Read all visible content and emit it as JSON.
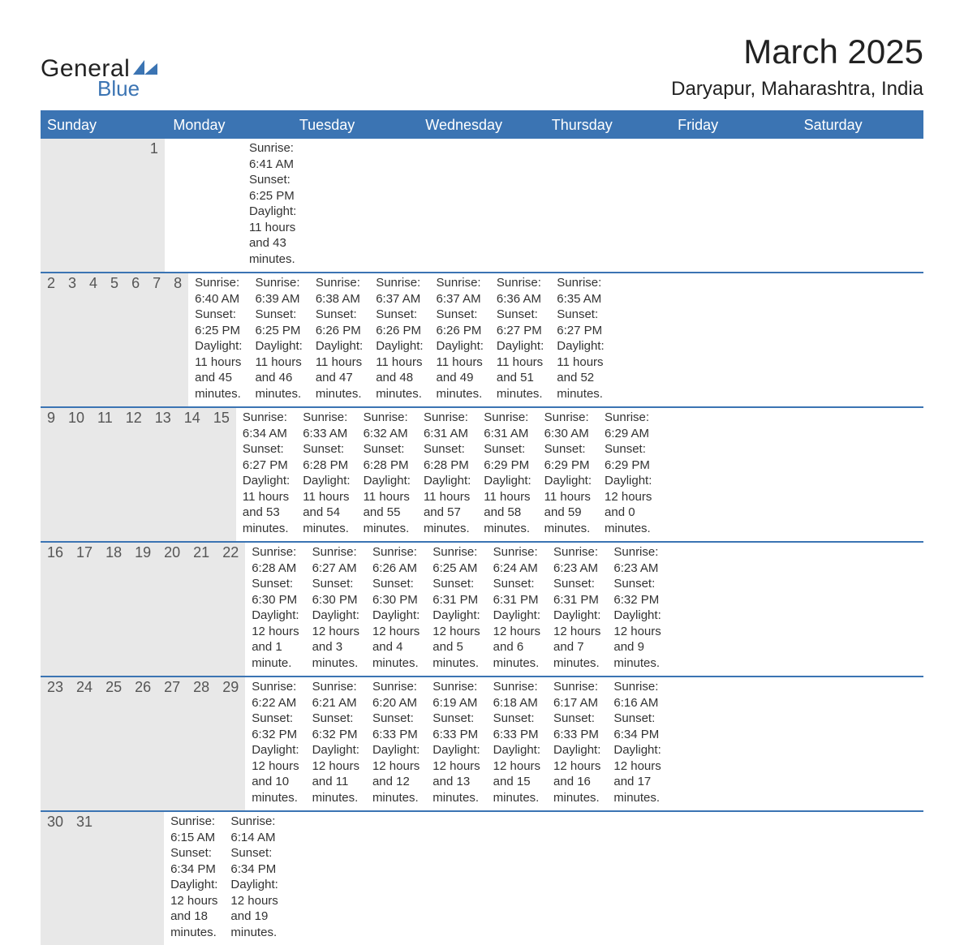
{
  "colors": {
    "header_blue": "#3b74b3",
    "row_separator_blue": "#3b74b3",
    "daynum_background": "#e8e8e8",
    "page_background": "#ffffff",
    "text": "#333333",
    "logo_dark": "#222222",
    "logo_blue": "#3b74b3"
  },
  "typography": {
    "font_family": "Arial",
    "title_month_fontsize": 42,
    "title_location_fontsize": 24,
    "weekday_fontsize": 18,
    "daynum_fontsize": 18,
    "body_fontsize": 15
  },
  "logo": {
    "line1": "General",
    "line2": "Blue"
  },
  "title": {
    "month": "March 2025",
    "location": "Daryapur, Maharashtra, India"
  },
  "weekdays": [
    "Sunday",
    "Monday",
    "Tuesday",
    "Wednesday",
    "Thursday",
    "Friday",
    "Saturday"
  ],
  "weeks": [
    [
      null,
      null,
      null,
      null,
      null,
      null,
      {
        "num": "1",
        "sunrise": "Sunrise: 6:41 AM",
        "sunset": "Sunset: 6:25 PM",
        "dl1": "Daylight: 11 hours",
        "dl2": "and 43 minutes."
      }
    ],
    [
      {
        "num": "2",
        "sunrise": "Sunrise: 6:40 AM",
        "sunset": "Sunset: 6:25 PM",
        "dl1": "Daylight: 11 hours",
        "dl2": "and 45 minutes."
      },
      {
        "num": "3",
        "sunrise": "Sunrise: 6:39 AM",
        "sunset": "Sunset: 6:25 PM",
        "dl1": "Daylight: 11 hours",
        "dl2": "and 46 minutes."
      },
      {
        "num": "4",
        "sunrise": "Sunrise: 6:38 AM",
        "sunset": "Sunset: 6:26 PM",
        "dl1": "Daylight: 11 hours",
        "dl2": "and 47 minutes."
      },
      {
        "num": "5",
        "sunrise": "Sunrise: 6:37 AM",
        "sunset": "Sunset: 6:26 PM",
        "dl1": "Daylight: 11 hours",
        "dl2": "and 48 minutes."
      },
      {
        "num": "6",
        "sunrise": "Sunrise: 6:37 AM",
        "sunset": "Sunset: 6:26 PM",
        "dl1": "Daylight: 11 hours",
        "dl2": "and 49 minutes."
      },
      {
        "num": "7",
        "sunrise": "Sunrise: 6:36 AM",
        "sunset": "Sunset: 6:27 PM",
        "dl1": "Daylight: 11 hours",
        "dl2": "and 51 minutes."
      },
      {
        "num": "8",
        "sunrise": "Sunrise: 6:35 AM",
        "sunset": "Sunset: 6:27 PM",
        "dl1": "Daylight: 11 hours",
        "dl2": "and 52 minutes."
      }
    ],
    [
      {
        "num": "9",
        "sunrise": "Sunrise: 6:34 AM",
        "sunset": "Sunset: 6:27 PM",
        "dl1": "Daylight: 11 hours",
        "dl2": "and 53 minutes."
      },
      {
        "num": "10",
        "sunrise": "Sunrise: 6:33 AM",
        "sunset": "Sunset: 6:28 PM",
        "dl1": "Daylight: 11 hours",
        "dl2": "and 54 minutes."
      },
      {
        "num": "11",
        "sunrise": "Sunrise: 6:32 AM",
        "sunset": "Sunset: 6:28 PM",
        "dl1": "Daylight: 11 hours",
        "dl2": "and 55 minutes."
      },
      {
        "num": "12",
        "sunrise": "Sunrise: 6:31 AM",
        "sunset": "Sunset: 6:28 PM",
        "dl1": "Daylight: 11 hours",
        "dl2": "and 57 minutes."
      },
      {
        "num": "13",
        "sunrise": "Sunrise: 6:31 AM",
        "sunset": "Sunset: 6:29 PM",
        "dl1": "Daylight: 11 hours",
        "dl2": "and 58 minutes."
      },
      {
        "num": "14",
        "sunrise": "Sunrise: 6:30 AM",
        "sunset": "Sunset: 6:29 PM",
        "dl1": "Daylight: 11 hours",
        "dl2": "and 59 minutes."
      },
      {
        "num": "15",
        "sunrise": "Sunrise: 6:29 AM",
        "sunset": "Sunset: 6:29 PM",
        "dl1": "Daylight: 12 hours",
        "dl2": "and 0 minutes."
      }
    ],
    [
      {
        "num": "16",
        "sunrise": "Sunrise: 6:28 AM",
        "sunset": "Sunset: 6:30 PM",
        "dl1": "Daylight: 12 hours",
        "dl2": "and 1 minute."
      },
      {
        "num": "17",
        "sunrise": "Sunrise: 6:27 AM",
        "sunset": "Sunset: 6:30 PM",
        "dl1": "Daylight: 12 hours",
        "dl2": "and 3 minutes."
      },
      {
        "num": "18",
        "sunrise": "Sunrise: 6:26 AM",
        "sunset": "Sunset: 6:30 PM",
        "dl1": "Daylight: 12 hours",
        "dl2": "and 4 minutes."
      },
      {
        "num": "19",
        "sunrise": "Sunrise: 6:25 AM",
        "sunset": "Sunset: 6:31 PM",
        "dl1": "Daylight: 12 hours",
        "dl2": "and 5 minutes."
      },
      {
        "num": "20",
        "sunrise": "Sunrise: 6:24 AM",
        "sunset": "Sunset: 6:31 PM",
        "dl1": "Daylight: 12 hours",
        "dl2": "and 6 minutes."
      },
      {
        "num": "21",
        "sunrise": "Sunrise: 6:23 AM",
        "sunset": "Sunset: 6:31 PM",
        "dl1": "Daylight: 12 hours",
        "dl2": "and 7 minutes."
      },
      {
        "num": "22",
        "sunrise": "Sunrise: 6:23 AM",
        "sunset": "Sunset: 6:32 PM",
        "dl1": "Daylight: 12 hours",
        "dl2": "and 9 minutes."
      }
    ],
    [
      {
        "num": "23",
        "sunrise": "Sunrise: 6:22 AM",
        "sunset": "Sunset: 6:32 PM",
        "dl1": "Daylight: 12 hours",
        "dl2": "and 10 minutes."
      },
      {
        "num": "24",
        "sunrise": "Sunrise: 6:21 AM",
        "sunset": "Sunset: 6:32 PM",
        "dl1": "Daylight: 12 hours",
        "dl2": "and 11 minutes."
      },
      {
        "num": "25",
        "sunrise": "Sunrise: 6:20 AM",
        "sunset": "Sunset: 6:33 PM",
        "dl1": "Daylight: 12 hours",
        "dl2": "and 12 minutes."
      },
      {
        "num": "26",
        "sunrise": "Sunrise: 6:19 AM",
        "sunset": "Sunset: 6:33 PM",
        "dl1": "Daylight: 12 hours",
        "dl2": "and 13 minutes."
      },
      {
        "num": "27",
        "sunrise": "Sunrise: 6:18 AM",
        "sunset": "Sunset: 6:33 PM",
        "dl1": "Daylight: 12 hours",
        "dl2": "and 15 minutes."
      },
      {
        "num": "28",
        "sunrise": "Sunrise: 6:17 AM",
        "sunset": "Sunset: 6:33 PM",
        "dl1": "Daylight: 12 hours",
        "dl2": "and 16 minutes."
      },
      {
        "num": "29",
        "sunrise": "Sunrise: 6:16 AM",
        "sunset": "Sunset: 6:34 PM",
        "dl1": "Daylight: 12 hours",
        "dl2": "and 17 minutes."
      }
    ],
    [
      {
        "num": "30",
        "sunrise": "Sunrise: 6:15 AM",
        "sunset": "Sunset: 6:34 PM",
        "dl1": "Daylight: 12 hours",
        "dl2": "and 18 minutes."
      },
      {
        "num": "31",
        "sunrise": "Sunrise: 6:14 AM",
        "sunset": "Sunset: 6:34 PM",
        "dl1": "Daylight: 12 hours",
        "dl2": "and 19 minutes."
      },
      null,
      null,
      null,
      null,
      null
    ]
  ]
}
